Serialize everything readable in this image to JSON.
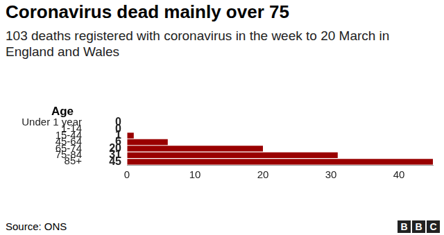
{
  "chart_data": {
    "type": "bar",
    "orientation": "horizontal",
    "title": "Coronavirus dead mainly over 75",
    "subtitle": "103 deaths registered with coronavirus in the week to 20 March in England and Wales",
    "ylabel": "Age",
    "categories": [
      "Under 1 year",
      "1-14",
      "15-44",
      "45-64",
      "65-74",
      "75-84",
      "85+"
    ],
    "values": [
      0,
      0,
      1,
      6,
      20,
      31,
      45
    ],
    "color": "#990000",
    "xlim": [
      0,
      45
    ],
    "xticks": [
      0,
      10,
      20,
      30,
      40
    ],
    "grid": true,
    "data_labels": true,
    "source": "Source: ONS",
    "logo": "BBC"
  }
}
